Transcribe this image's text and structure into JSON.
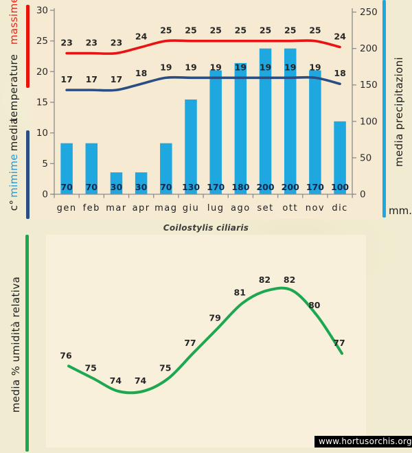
{
  "title": "Coilostylis ciliaris",
  "watermark": "www.hortusorchis.org",
  "colors": {
    "red": "#e8140c",
    "navy": "#2a4d82",
    "azure": "#1fa7e0",
    "green": "#1da750",
    "massime_text": "#e8251c",
    "minime_text": "#2797d4"
  },
  "climograph": {
    "left_caption": {
      "massime": "massime",
      "temperature": "temperature",
      "media": "media",
      "minime": "mimime",
      "unit": "c°"
    },
    "right_caption": {
      "label": "media  precipitazioni",
      "unit": "mm."
    }
  },
  "humidity_caption": "media % umidità relativa",
  "chart_data": [
    {
      "type": "bar",
      "name": "climograph",
      "categories": [
        "gen",
        "feb",
        "mar",
        "apr",
        "mag",
        "giu",
        "lug",
        "ago",
        "set",
        "ott",
        "nov",
        "dic"
      ],
      "series": [
        {
          "name": "media precipitazioni (mm)",
          "kind": "bar",
          "color": "#1fa7e0",
          "values": [
            70,
            70,
            30,
            30,
            70,
            130,
            170,
            180,
            200,
            200,
            170,
            100
          ]
        },
        {
          "name": "temperature massime (c°)",
          "kind": "line",
          "color": "#e81414",
          "values": [
            23,
            23,
            23,
            24,
            25,
            25,
            25,
            25,
            25,
            25,
            25,
            24
          ]
        },
        {
          "name": "temperature minime (c°)",
          "kind": "line",
          "color": "#2a4d82",
          "values": [
            17,
            17,
            17,
            18,
            19,
            19,
            19,
            19,
            19,
            19,
            19,
            18
          ]
        }
      ],
      "left_axis": {
        "label": "media temperature c°",
        "ticks": [
          0,
          5,
          10,
          15,
          20,
          25,
          30
        ],
        "range": [
          0,
          30
        ]
      },
      "right_axis": {
        "label": "media precipitazioni mm.",
        "ticks": [
          0,
          50,
          100,
          150,
          200,
          250
        ],
        "range": [
          0,
          250
        ]
      },
      "grid": false,
      "legend_position": "none"
    },
    {
      "type": "line",
      "name": "humidity",
      "categories": [
        "gen",
        "feb",
        "mar",
        "apr",
        "mag",
        "giu",
        "lug",
        "ago",
        "set",
        "ott",
        "nov",
        "dic"
      ],
      "series": [
        {
          "name": "media % umidità relativa",
          "kind": "line",
          "color": "#1da750",
          "values": [
            76,
            75,
            74,
            74,
            75,
            77,
            79,
            81,
            82,
            82,
            80,
            77
          ]
        }
      ],
      "ylabel": "media % umidità relativa",
      "grid": false,
      "legend_position": "none"
    }
  ]
}
